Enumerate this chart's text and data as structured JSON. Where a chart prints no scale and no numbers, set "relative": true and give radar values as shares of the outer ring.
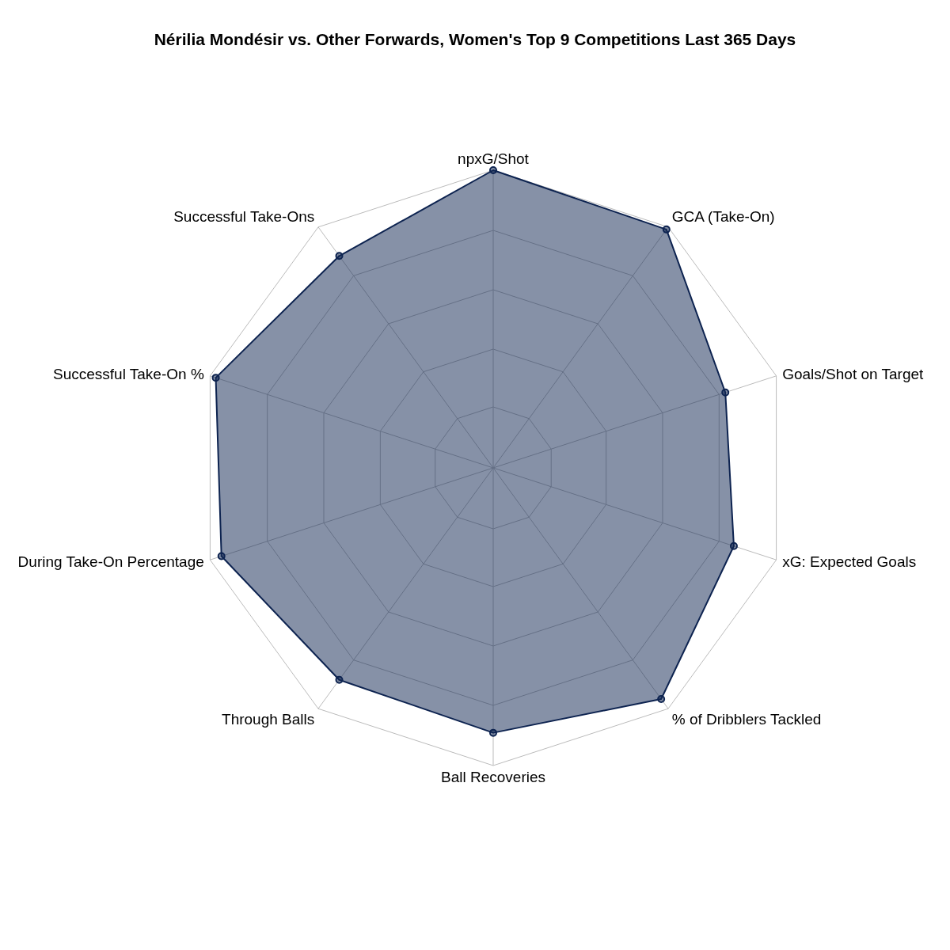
{
  "chart_data": {
    "type": "radar",
    "title": "Nérilia Mondésir vs. Other Forwards, Women's Top 9 Competitions Last 365 Days",
    "categories": [
      "npxG/Shot",
      "GCA (Take-On)",
      "Goals/Shot on Target",
      "xG: Expected Goals",
      "% of Dribblers Tackled",
      "Ball Recoveries",
      "Through Balls",
      "During Take-On Percentage",
      "Successful Take-On %",
      "Successful Take-Ons"
    ],
    "series": [
      {
        "color": "#0d2350",
        "values": [
          1.0,
          0.99,
          0.82,
          0.85,
          0.96,
          0.89,
          0.88,
          0.96,
          0.98,
          0.88
        ]
      }
    ],
    "relative": true,
    "grid": true,
    "marker": "circle"
  }
}
